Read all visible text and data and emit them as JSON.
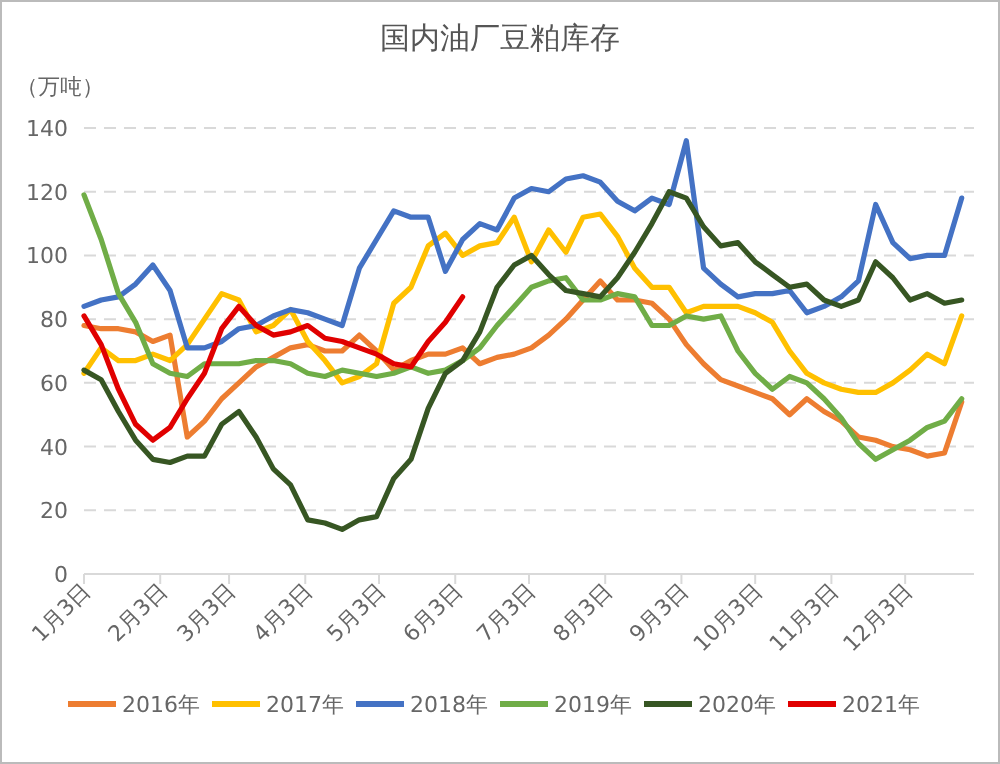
{
  "chart_data": {
    "type": "line",
    "title": "国内油厂豆粕库存",
    "ylabel": "（万吨）",
    "x": [
      "--01-03",
      "--01-10",
      "--01-17",
      "--01-24",
      "--01-31",
      "--02-07",
      "--02-14",
      "--02-21",
      "--02-28",
      "--03-07",
      "--03-14",
      "--03-21",
      "--03-28",
      "--04-04",
      "--04-11",
      "--04-18",
      "--04-25",
      "--05-02",
      "--05-09",
      "--05-16",
      "--05-23",
      "--05-30",
      "--06-06",
      "--06-13",
      "--06-20",
      "--06-27",
      "--07-04",
      "--07-11",
      "--07-18",
      "--07-25",
      "--08-01",
      "--08-08",
      "--08-15",
      "--08-22",
      "--08-29",
      "--09-05",
      "--09-12",
      "--09-19",
      "--09-26",
      "--10-03",
      "--10-10",
      "--10-17",
      "--10-24",
      "--10-31",
      "--11-07",
      "--11-14",
      "--11-21",
      "--11-28",
      "--12-05",
      "--12-12",
      "--12-19",
      "--12-26"
    ],
    "series": [
      {
        "name": "2016年",
        "color": "#ed7d31",
        "values": [
          78,
          77,
          77,
          76,
          73,
          75,
          43,
          48,
          55,
          60,
          65,
          68,
          71,
          72,
          70,
          70,
          75,
          70,
          64,
          67,
          69,
          69,
          71,
          66,
          68,
          69,
          71,
          75,
          80,
          86,
          92,
          86,
          86,
          85,
          80,
          72,
          66,
          61,
          59,
          57,
          55,
          50,
          55,
          51,
          48,
          43,
          42,
          40,
          39,
          37,
          38,
          54
        ]
      },
      {
        "name": "2017年",
        "color": "#ffc000",
        "values": [
          63,
          71,
          67,
          67,
          69,
          67,
          72,
          80,
          88,
          86,
          76,
          78,
          83,
          73,
          67,
          60,
          62,
          66,
          85,
          90,
          103,
          107,
          100,
          103,
          104,
          112,
          98,
          108,
          101,
          112,
          113,
          106,
          96,
          90,
          90,
          82,
          84,
          84,
          84,
          82,
          79,
          70,
          63,
          60,
          58,
          57,
          57,
          60,
          64,
          69,
          66,
          81
        ]
      },
      {
        "name": "2018年",
        "color": "#4472c4",
        "values": [
          84,
          86,
          87,
          91,
          97,
          89,
          71,
          71,
          73,
          77,
          78,
          81,
          83,
          82,
          80,
          78,
          96,
          105,
          114,
          112,
          112,
          95,
          105,
          110,
          108,
          118,
          121,
          120,
          124,
          125,
          123,
          117,
          114,
          118,
          116,
          136,
          96,
          91,
          87,
          88,
          88,
          89,
          82,
          84,
          87,
          92,
          116,
          104,
          99,
          100,
          100,
          118
        ]
      },
      {
        "name": "2019年",
        "color": "#70ad47",
        "values": [
          119,
          105,
          88,
          79,
          66,
          63,
          62,
          66,
          66,
          66,
          67,
          67,
          66,
          63,
          62,
          64,
          63,
          62,
          63,
          65,
          63,
          64,
          67,
          71,
          78,
          84,
          90,
          92,
          93,
          86,
          86,
          88,
          87,
          78,
          78,
          81,
          80,
          81,
          70,
          63,
          58,
          62,
          60,
          55,
          49,
          41,
          36,
          39,
          42,
          46,
          48,
          55
        ]
      },
      {
        "name": "2020年",
        "color": "#375623",
        "values": [
          64,
          61,
          51,
          42,
          36,
          35,
          37,
          37,
          47,
          51,
          43,
          33,
          28,
          17,
          16,
          14,
          17,
          18,
          30,
          36,
          52,
          63,
          67,
          76,
          90,
          97,
          100,
          94,
          89,
          88,
          87,
          93,
          101,
          110,
          120,
          118,
          109,
          103,
          104,
          98,
          94,
          90,
          91,
          86,
          84,
          86,
          98,
          93,
          86,
          88,
          85,
          86
        ]
      },
      {
        "name": "2021年",
        "color": "#e00000",
        "values": [
          81,
          72,
          58,
          47,
          42,
          46,
          55,
          63,
          77,
          84,
          78,
          75,
          76,
          78,
          74,
          73,
          71,
          69,
          66,
          65,
          73,
          79,
          87,
          null,
          null,
          null,
          null,
          null,
          null,
          null,
          null,
          null,
          null,
          null,
          null,
          null,
          null,
          null,
          null,
          null,
          null,
          null,
          null,
          null,
          null,
          null,
          null,
          null,
          null,
          null,
          null,
          null
        ]
      }
    ],
    "xlim": [
      "--01-03",
      "--12-31"
    ],
    "xticks": [
      {
        "value": "--01-03",
        "label": "1月3日"
      },
      {
        "value": "--02-03",
        "label": "2月3日"
      },
      {
        "value": "--03-03",
        "label": "3月3日"
      },
      {
        "value": "--04-03",
        "label": "4月3日"
      },
      {
        "value": "--05-03",
        "label": "5月3日"
      },
      {
        "value": "--06-03",
        "label": "6月3日"
      },
      {
        "value": "--07-03",
        "label": "7月3日"
      },
      {
        "value": "--08-03",
        "label": "8月3日"
      },
      {
        "value": "--09-03",
        "label": "9月3日"
      },
      {
        "value": "--10-03",
        "label": "10月3日"
      },
      {
        "value": "--11-03",
        "label": "11月3日"
      },
      {
        "value": "--12-03",
        "label": "12月3日"
      }
    ],
    "ylim": [
      0,
      140
    ],
    "yticks": [
      0,
      20,
      40,
      60,
      80,
      100,
      120,
      140
    ],
    "grid": "y",
    "legend": "bottom",
    "marker": "none",
    "line_style": "solid"
  }
}
